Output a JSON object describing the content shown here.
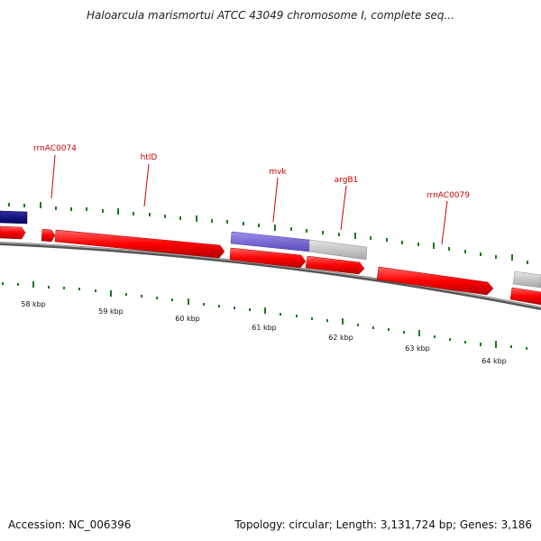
{
  "title": "Haloarcula marismortui ATCC 43049 chromosome I, complete seq...",
  "footer": {
    "accession": "Accession: NC_006396",
    "stats": "Topology: circular; Length: 3,131,724 bp; Genes: 3,186"
  },
  "colors": {
    "gene_red": "#ff0000",
    "gene_dark_blue": "#000080",
    "gene_purple": "#6a5acd",
    "gene_gray": "#bdbdbd",
    "label_red": "#cc0000",
    "tick_green": "#1a7a1a",
    "backbone_gray": "#808080"
  },
  "gene_labels": [
    {
      "name": "rrnAC0074"
    },
    {
      "name": "htlD"
    },
    {
      "name": "mvk"
    },
    {
      "name": "argB1"
    },
    {
      "name": "rrnAC0079"
    }
  ],
  "kbp_labels": [
    "58 kbp",
    "59 kbp",
    "60 kbp",
    "61 kbp",
    "62 kbp",
    "63 kbp",
    "64 kbp"
  ]
}
